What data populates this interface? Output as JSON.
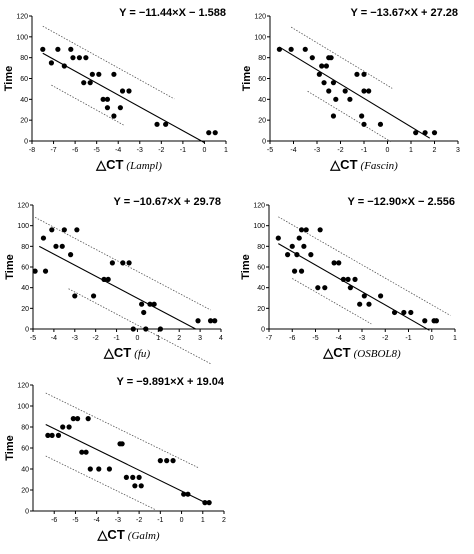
{
  "chart_data": [
    {
      "type": "scatter",
      "equation": "Y = −11.44×X − 1.588",
      "ylabel": "Time",
      "xlabel_main": "△CT",
      "xlabel_gene": "Lampl",
      "xlim": [
        -8,
        1
      ],
      "ylim": [
        0,
        120
      ],
      "xticks": [
        "-8",
        "-7",
        "-6",
        "-5",
        "-4",
        "-3",
        "-2",
        "-1",
        "0",
        "1"
      ],
      "yticks": [
        "0",
        "20",
        "40",
        "60",
        "80",
        "100",
        "120"
      ],
      "slope": -11.44,
      "intercept": -1.588,
      "fit_range": [
        -7.5,
        0
      ],
      "band_upper_range": [
        -7.5,
        -1.4
      ],
      "band_lower_range": [
        -7.1,
        -3.7
      ],
      "band_offset": 26,
      "points": [
        [
          -7.5,
          88
        ],
        [
          -7.1,
          75
        ],
        [
          -6.8,
          88
        ],
        [
          -6.5,
          72
        ],
        [
          -6.2,
          88
        ],
        [
          -6.1,
          80
        ],
        [
          -5.8,
          80
        ],
        [
          -5.5,
          80
        ],
        [
          -5.2,
          64
        ],
        [
          -4.9,
          64
        ],
        [
          -4.7,
          40
        ],
        [
          -5.3,
          56
        ],
        [
          -5.6,
          56
        ],
        [
          -4.5,
          40
        ],
        [
          -4.2,
          64
        ],
        [
          -4.5,
          32
        ],
        [
          -4.2,
          24
        ],
        [
          -3.8,
          48
        ],
        [
          -3.5,
          48
        ],
        [
          -3.9,
          32
        ],
        [
          -2.2,
          16
        ],
        [
          -1.8,
          16
        ],
        [
          0.2,
          8
        ],
        [
          0.5,
          8
        ]
      ]
    },
    {
      "type": "scatter",
      "equation": "Y = −13.67×X + 27.28",
      "ylabel": "Time",
      "xlabel_main": "△CT",
      "xlabel_gene": "Fascin",
      "xlim": [
        -5,
        3
      ],
      "ylim": [
        0,
        120
      ],
      "xticks": [
        "-5",
        "-4",
        "-3",
        "-2",
        "-1",
        "0",
        "1",
        "2",
        "3"
      ],
      "yticks": [
        "0",
        "20",
        "40",
        "60",
        "80",
        "100",
        "120"
      ],
      "slope": -13.67,
      "intercept": 27.28,
      "fit_range": [
        -4.6,
        1.8
      ],
      "band_upper_range": [
        -4.1,
        0.2
      ],
      "band_lower_range": [
        -3.4,
        0.2
      ],
      "band_offset": 26,
      "points": [
        [
          -4.6,
          88
        ],
        [
          -4.1,
          88
        ],
        [
          -3.5,
          88
        ],
        [
          -3.2,
          80
        ],
        [
          -2.8,
          72
        ],
        [
          -2.6,
          72
        ],
        [
          -2.9,
          64
        ],
        [
          -2.5,
          80
        ],
        [
          -2.4,
          80
        ],
        [
          -2.3,
          56
        ],
        [
          -2.5,
          48
        ],
        [
          -2.7,
          56
        ],
        [
          -2.2,
          40
        ],
        [
          -2.3,
          24
        ],
        [
          -1.8,
          48
        ],
        [
          -1.6,
          40
        ],
        [
          -1.3,
          64
        ],
        [
          -1.0,
          64
        ],
        [
          -1.0,
          48
        ],
        [
          -0.8,
          48
        ],
        [
          -1.1,
          24
        ],
        [
          -1.0,
          16
        ],
        [
          -0.3,
          16
        ],
        [
          1.2,
          8
        ],
        [
          1.6,
          8
        ],
        [
          2.0,
          8
        ]
      ]
    },
    {
      "type": "scatter",
      "equation": "Y = −10.67×X + 29.78",
      "ylabel": "Time",
      "xlabel_main": "△CT",
      "xlabel_gene": "fu",
      "xlim": [
        -5,
        4
      ],
      "ylim": [
        0,
        120
      ],
      "xticks": [
        "-5",
        "-4",
        "-3",
        "-2",
        "-1",
        "0",
        "1",
        "2",
        "3",
        "4"
      ],
      "yticks": [
        "0",
        "20",
        "40",
        "60",
        "80",
        "100",
        "120"
      ],
      "slope": -10.67,
      "intercept": 29.78,
      "fit_range": [
        -4.7,
        2.8
      ],
      "band_upper_range": [
        -4.9,
        3.5
      ],
      "band_lower_range": [
        -3.3,
        3.5
      ],
      "band_offset": 26,
      "points": [
        [
          -4.9,
          56
        ],
        [
          -4.5,
          88
        ],
        [
          -4.4,
          56
        ],
        [
          -4.1,
          96
        ],
        [
          -3.9,
          80
        ],
        [
          -3.6,
          80
        ],
        [
          -3.5,
          96
        ],
        [
          -3.2,
          72
        ],
        [
          -3.0,
          32
        ],
        [
          -2.9,
          96
        ],
        [
          -2.1,
          32
        ],
        [
          -1.6,
          48
        ],
        [
          -1.4,
          48
        ],
        [
          -1.2,
          64
        ],
        [
          -0.7,
          64
        ],
        [
          -0.4,
          64
        ],
        [
          -0.2,
          0
        ],
        [
          0.2,
          24
        ],
        [
          0.3,
          16
        ],
        [
          0.6,
          24
        ],
        [
          0.8,
          24
        ],
        [
          0.4,
          0
        ],
        [
          1.1,
          0
        ],
        [
          2.9,
          8
        ],
        [
          3.5,
          8
        ],
        [
          3.7,
          8
        ]
      ]
    },
    {
      "type": "scatter",
      "equation": "Y = −12.90×X − 2.556",
      "ylabel": "Time",
      "xlabel_main": "△CT",
      "xlabel_gene": "OSBOL8",
      "xlim": [
        -7,
        1
      ],
      "ylim": [
        0,
        120
      ],
      "xticks": [
        "-7",
        "-6",
        "-5",
        "-4",
        "-3",
        "-2",
        "-1",
        "0",
        "1"
      ],
      "yticks": [
        "0",
        "20",
        "40",
        "60",
        "80",
        "100",
        "120"
      ],
      "slope": -12.9,
      "intercept": -2.556,
      "fit_range": [
        -6.6,
        -0.1
      ],
      "band_upper_range": [
        -6.6,
        0.8
      ],
      "band_lower_range": [
        -6.0,
        -2.6
      ],
      "band_offset": 26,
      "points": [
        [
          -6.6,
          88
        ],
        [
          -6.2,
          72
        ],
        [
          -6.0,
          80
        ],
        [
          -5.8,
          72
        ],
        [
          -5.9,
          56
        ],
        [
          -5.6,
          56
        ],
        [
          -5.7,
          88
        ],
        [
          -5.6,
          96
        ],
        [
          -5.4,
          96
        ],
        [
          -5.5,
          80
        ],
        [
          -5.2,
          72
        ],
        [
          -4.9,
          40
        ],
        [
          -4.8,
          96
        ],
        [
          -4.6,
          40
        ],
        [
          -4.2,
          64
        ],
        [
          -4.0,
          64
        ],
        [
          -3.8,
          48
        ],
        [
          -3.6,
          48
        ],
        [
          -3.5,
          40
        ],
        [
          -3.3,
          48
        ],
        [
          -3.1,
          24
        ],
        [
          -2.9,
          32
        ],
        [
          -2.7,
          24
        ],
        [
          -2.2,
          32
        ],
        [
          -1.6,
          16
        ],
        [
          -1.2,
          16
        ],
        [
          -0.9,
          16
        ],
        [
          -0.3,
          8
        ],
        [
          0.1,
          8
        ],
        [
          0.2,
          8
        ]
      ]
    },
    {
      "type": "scatter",
      "equation": "Y = −9.891×X + 19.04",
      "ylabel": "Time",
      "xlabel_main": "△CT",
      "xlabel_gene": "Galm",
      "xlim": [
        -7,
        2
      ],
      "ylim": [
        0,
        120
      ],
      "xticks": [
        "-6",
        "-5",
        "-4",
        "-3",
        "-2",
        "-1",
        "0",
        "1",
        "2"
      ],
      "yticks": [
        "0",
        "20",
        "40",
        "60",
        "80",
        "100",
        "120"
      ],
      "slope": -9.891,
      "intercept": 19.04,
      "fit_range": [
        -6.4,
        1.3
      ],
      "band_upper_range": [
        -6.4,
        0.8
      ],
      "band_lower_range": [
        -6.4,
        -1.2
      ],
      "band_offset": 30,
      "points": [
        [
          -6.3,
          72
        ],
        [
          -6.1,
          72
        ],
        [
          -5.8,
          72
        ],
        [
          -5.6,
          80
        ],
        [
          -5.3,
          80
        ],
        [
          -5.1,
          88
        ],
        [
          -4.9,
          88
        ],
        [
          -4.4,
          88
        ],
        [
          -4.7,
          56
        ],
        [
          -4.5,
          56
        ],
        [
          -4.3,
          40
        ],
        [
          -3.9,
          40
        ],
        [
          -3.4,
          40
        ],
        [
          -2.9,
          64
        ],
        [
          -2.8,
          64
        ],
        [
          -2.6,
          32
        ],
        [
          -2.3,
          32
        ],
        [
          -2.2,
          24
        ],
        [
          -2.0,
          32
        ],
        [
          -1.9,
          24
        ],
        [
          -1.0,
          48
        ],
        [
          -0.7,
          48
        ],
        [
          -0.4,
          48
        ],
        [
          0.1,
          16
        ],
        [
          0.3,
          16
        ],
        [
          1.1,
          8
        ],
        [
          1.3,
          8
        ]
      ]
    }
  ]
}
